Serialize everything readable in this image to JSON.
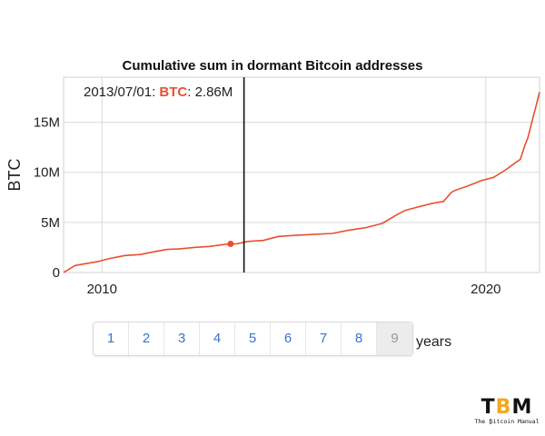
{
  "chart_data": {
    "type": "line",
    "title": "Cumulative sum in dormant Bitcoin addresses",
    "xlabel": "",
    "ylabel": "BTC",
    "xlim": [
      2009.0,
      2021.4
    ],
    "ylim": [
      0,
      19500000
    ],
    "x_ticks": [
      {
        "value": 2010,
        "label": "2010"
      },
      {
        "value": 2020,
        "label": "2020"
      }
    ],
    "y_ticks": [
      {
        "value": 0,
        "label": "0"
      },
      {
        "value": 5000000,
        "label": "5M"
      },
      {
        "value": 10000000,
        "label": "10M"
      },
      {
        "value": 15000000,
        "label": "15M"
      }
    ],
    "grid": true,
    "series": [
      {
        "name": "BTC",
        "color": "#e8502f",
        "x": [
          2009.0,
          2009.3,
          2009.6,
          2009.9,
          2010.2,
          2010.6,
          2011.0,
          2011.4,
          2011.7,
          2012.0,
          2012.4,
          2012.8,
          2013.2,
          2013.5,
          2013.8,
          2014.2,
          2014.6,
          2015.0,
          2015.5,
          2016.0,
          2016.4,
          2016.9,
          2017.3,
          2017.7,
          2017.9,
          2018.1,
          2018.3,
          2018.6,
          2018.9,
          2019.1,
          2019.2,
          2019.5,
          2019.9,
          2020.2,
          2020.5,
          2020.75,
          2020.9,
          2021.0,
          2021.1,
          2021.2,
          2021.3,
          2021.4
        ],
        "y": [
          0,
          700000,
          900000,
          1100000,
          1400000,
          1700000,
          1800000,
          2100000,
          2300000,
          2350000,
          2500000,
          2600000,
          2800000,
          2860000,
          3100000,
          3200000,
          3600000,
          3700000,
          3800000,
          3900000,
          4200000,
          4500000,
          4900000,
          5800000,
          6200000,
          6400000,
          6600000,
          6900000,
          7100000,
          8000000,
          8200000,
          8600000,
          9200000,
          9500000,
          10200000,
          10900000,
          11300000,
          12500000,
          13500000,
          15000000,
          16500000,
          18000000
        ]
      }
    ],
    "cursor": {
      "x": 2013.7,
      "y": 2860000
    },
    "readout": {
      "date": "2013/07/01:",
      "series": "BTC",
      "value": ": 2.86M"
    }
  },
  "year_buttons": {
    "items": [
      "1",
      "2",
      "3",
      "4",
      "5",
      "6",
      "7",
      "8",
      "9"
    ],
    "selected": "9",
    "suffix": "years"
  },
  "logo": {
    "mark_t": "T",
    "mark_b": "B",
    "mark_m": "M",
    "tagline": "The ₿itcoin Manual"
  }
}
